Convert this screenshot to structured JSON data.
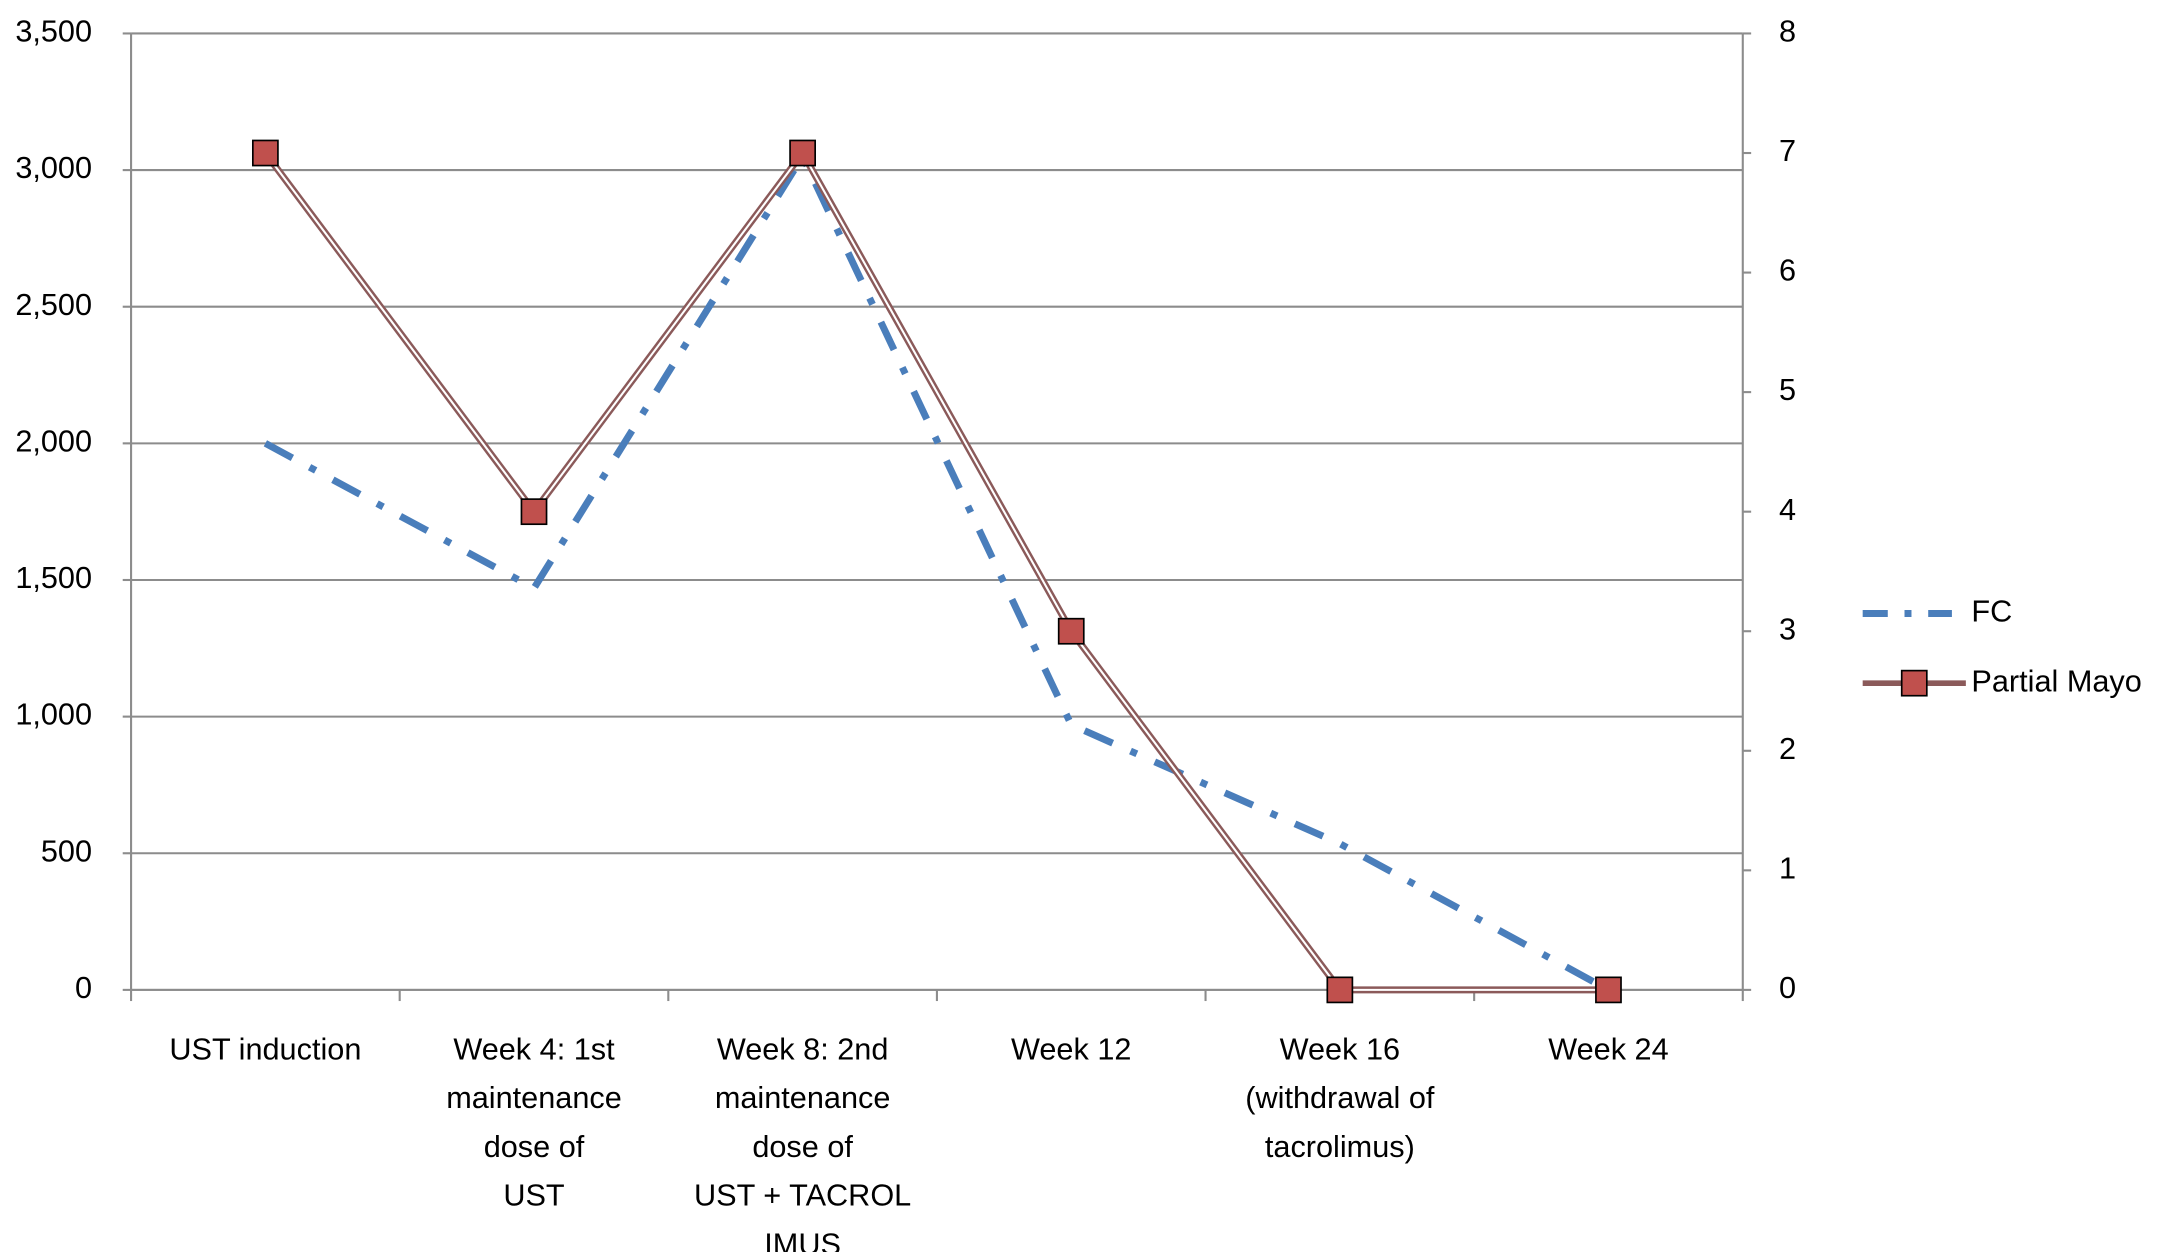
{
  "chart_data": {
    "type": "line",
    "categories": [
      [
        "UST induction"
      ],
      [
        "Week 4: 1st",
        "maintenance",
        "dose of",
        "UST"
      ],
      [
        "Week 8: 2nd",
        "maintenance",
        "dose of",
        "UST + TACROL",
        "IMUS"
      ],
      [
        "Week 12"
      ],
      [
        "Week 16",
        "(withdrawal of",
        "tacrolimus)"
      ],
      [
        "Week 24"
      ]
    ],
    "series": [
      {
        "name": "FC",
        "color": "#4a7ebb",
        "values": [
          2000,
          1470,
          3050,
          970,
          535,
          0
        ]
      },
      {
        "name": "Partial Mayo",
        "color": "#8b5a5a",
        "marker_color": "#c0504d",
        "axis": "y2",
        "values": [
          7,
          4,
          7,
          3,
          0,
          0
        ]
      }
    ],
    "ylim": [
      0,
      3500
    ],
    "yticks": [
      0,
      500,
      {
        "value": 1000,
        "label": "1,000"
      },
      {
        "value": 1500,
        "label": "1,500"
      },
      {
        "value": 2000,
        "label": "2,000"
      },
      {
        "value": 2500,
        "label": "2,500"
      },
      {
        "value": 3000,
        "label": "3,000"
      },
      {
        "value": 3500,
        "label": "3,500"
      }
    ],
    "y2lim": [
      0,
      8
    ],
    "y2ticks": [
      0,
      1,
      2,
      3,
      4,
      5,
      6,
      7,
      8
    ],
    "grid": true,
    "legend": "right"
  }
}
